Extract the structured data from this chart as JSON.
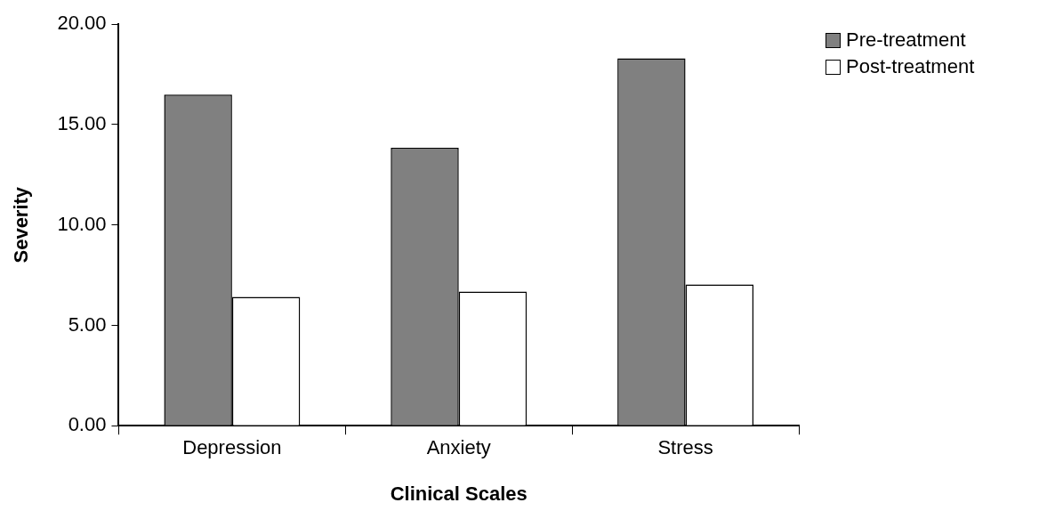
{
  "chart_data": {
    "type": "bar",
    "xlabel": "Clinical Scales",
    "ylabel": "Severity",
    "categories": [
      "Depression",
      "Anxiety",
      "Stress"
    ],
    "series": [
      {
        "name": "Pre-treatment",
        "color": "#808080",
        "values": [
          16.5,
          13.85,
          18.3
        ]
      },
      {
        "name": "Post-treatment",
        "color": "#ffffff",
        "values": [
          6.42,
          6.68,
          7.04
        ]
      }
    ],
    "ylim": [
      0,
      20
    ],
    "yticks": [
      {
        "value": 0,
        "label": "0.00"
      },
      {
        "value": 5,
        "label": "5.00"
      },
      {
        "value": 10,
        "label": "10.00"
      },
      {
        "value": 15,
        "label": "15.00"
      },
      {
        "value": 20,
        "label": "20.00"
      }
    ],
    "grid": false,
    "legend": "top right"
  }
}
